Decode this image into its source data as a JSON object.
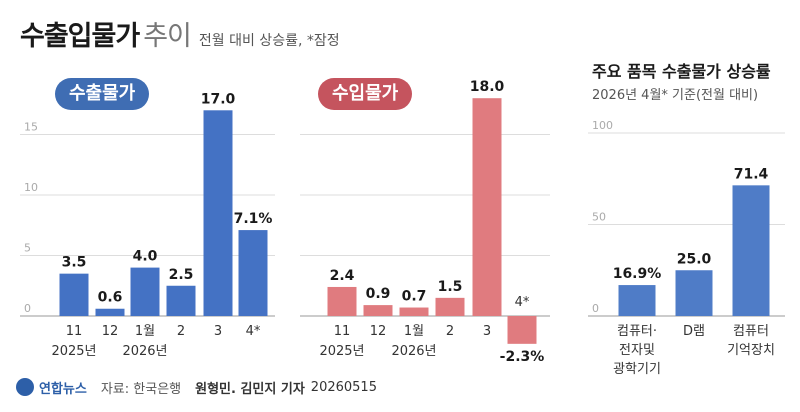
{
  "header": {
    "title": "수출입물가",
    "subtitle": "추이",
    "note": "전월 대비 상승률, *잠정"
  },
  "colors": {
    "export": "#4472c4",
    "import": "#e07b7f",
    "items": "#4f7cc7",
    "gridline": "#dddddd",
    "axis_text": "#aaaaaa"
  },
  "chart_data": [
    {
      "type": "bar",
      "title": "수출물가",
      "categories": [
        "11",
        "12",
        "1월",
        "2",
        "3",
        "4*"
      ],
      "category_sublabels": [
        "2025년",
        "",
        "2026년",
        "",
        "",
        ""
      ],
      "values": [
        3.5,
        0.6,
        4.0,
        2.5,
        17.0,
        7.1
      ],
      "value_labels": [
        "3.5",
        "0.6",
        "4.0",
        "2.5",
        "17.0",
        "7.1%"
      ],
      "yticks": [
        "0",
        "5",
        "10",
        "15"
      ],
      "ylim": [
        0,
        17
      ]
    },
    {
      "type": "bar",
      "title": "수입물가",
      "categories": [
        "11",
        "12",
        "1월",
        "2",
        "3",
        "4*"
      ],
      "category_sublabels": [
        "2025년",
        "",
        "2026년",
        "",
        "",
        ""
      ],
      "values": [
        2.4,
        0.9,
        0.7,
        1.5,
        18.0,
        -2.3
      ],
      "value_labels": [
        "2.4",
        "0.9",
        "0.7",
        "1.5",
        "18.0",
        "-2.3%"
      ],
      "ylim": [
        -2.3,
        18
      ]
    },
    {
      "type": "bar",
      "title": "주요 품목 수출물가 상승률",
      "subtitle": "2026년 4월* 기준(전월 대비)",
      "categories": [
        "컴퓨터·\n전자및\n광학기기",
        "D램",
        "컴퓨터\n기억장치"
      ],
      "values": [
        16.9,
        25.0,
        71.4
      ],
      "value_labels": [
        "16.9%",
        "25.0",
        "71.4"
      ],
      "yticks": [
        "0",
        "50",
        "100"
      ],
      "ylim": [
        0,
        100
      ]
    }
  ],
  "footer": {
    "logo": "연합뉴스",
    "source": "자료: 한국은행",
    "credit": "원형민. 김민지 기자",
    "date": "20260515"
  }
}
